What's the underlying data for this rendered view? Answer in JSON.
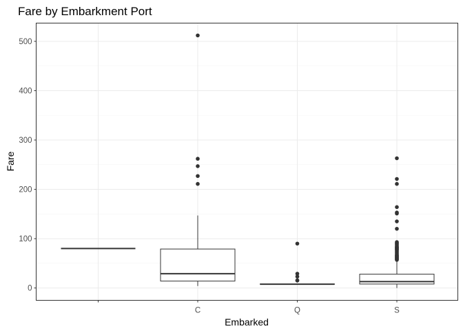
{
  "chart_data": {
    "type": "boxplot",
    "title": "Fare by Embarkment Port",
    "xlabel": "Embarked",
    "ylabel": "Fare",
    "ylim": [
      -25,
      537
    ],
    "yticks": [
      0,
      100,
      200,
      300,
      400,
      500
    ],
    "grid": true,
    "categories": [
      "",
      "C",
      "Q",
      "S"
    ],
    "boxes": [
      {
        "category": "",
        "min": 80,
        "q1": 80,
        "median": 80,
        "q3": 80,
        "max": 80,
        "outliers": []
      },
      {
        "category": "C",
        "min": 4,
        "q1": 14,
        "median": 29,
        "q3": 79,
        "max": 147,
        "outliers": [
          211,
          227,
          247,
          262,
          512
        ]
      },
      {
        "category": "Q",
        "min": 7,
        "q1": 7.75,
        "median": 7.75,
        "q3": 8,
        "max": 8,
        "outliers": [
          15,
          15.5,
          23,
          29,
          90
        ]
      },
      {
        "category": "S",
        "min": 0,
        "q1": 8,
        "median": 13,
        "q3": 28,
        "max": 56,
        "outliers": [
          57,
          58,
          59,
          60,
          61,
          62,
          63,
          64,
          65,
          66,
          67,
          69,
          71,
          73,
          75,
          77,
          78,
          79,
          80,
          81,
          82,
          83,
          84,
          86,
          88,
          90,
          91,
          93,
          120,
          135,
          151,
          153,
          164,
          211,
          221,
          263
        ]
      }
    ]
  }
}
